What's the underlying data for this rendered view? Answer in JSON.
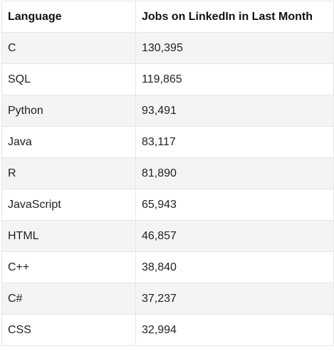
{
  "table": {
    "headers": [
      "Language",
      "Jobs on LinkedIn in Last Month"
    ],
    "rows": [
      {
        "language": "C",
        "jobs": "130,395"
      },
      {
        "language": "SQL",
        "jobs": "119,865"
      },
      {
        "language": "Python",
        "jobs": "93,491"
      },
      {
        "language": "Java",
        "jobs": "83,117"
      },
      {
        "language": "R",
        "jobs": "81,890"
      },
      {
        "language": "JavaScript",
        "jobs": "65,943"
      },
      {
        "language": "HTML",
        "jobs": "46,857"
      },
      {
        "language": "C++",
        "jobs": "38,840"
      },
      {
        "language": "C#",
        "jobs": "37,237"
      },
      {
        "language": "CSS",
        "jobs": "32,994"
      }
    ]
  },
  "colors": {
    "border": "#e6e6e6",
    "row_alt": "#f4f4f4",
    "text": "#222222"
  }
}
